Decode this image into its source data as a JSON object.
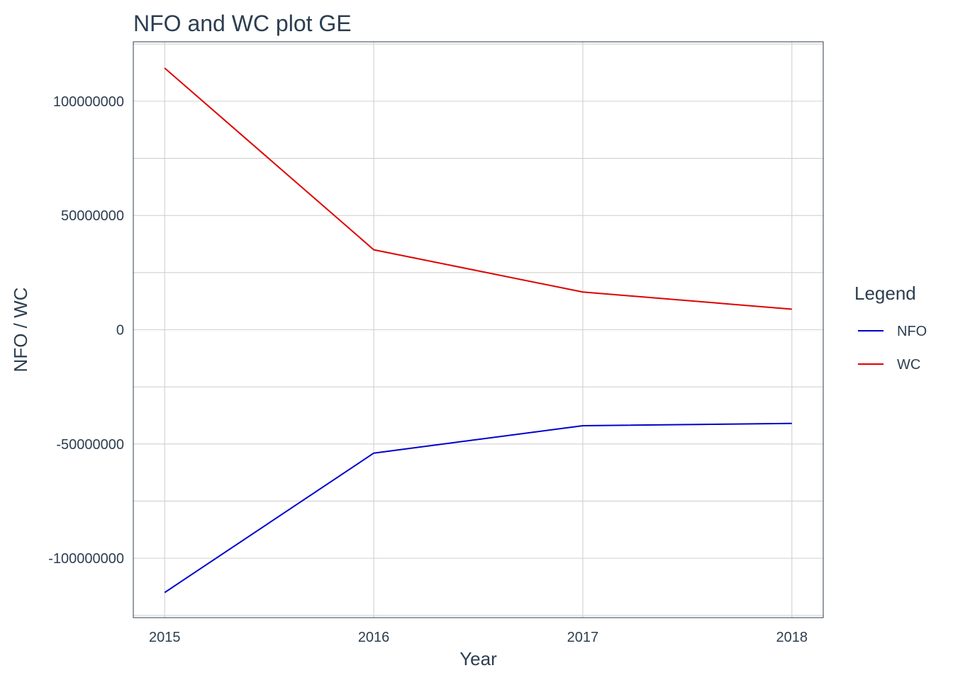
{
  "chart_data": {
    "type": "line",
    "title": "NFO and WC plot GE",
    "xlabel": "Year",
    "ylabel": "NFO / WC",
    "x": [
      2015,
      2016,
      2017,
      2018
    ],
    "x_tick_labels": [
      "2015",
      "2016",
      "2017",
      "2018"
    ],
    "y_ticks": [
      -100000000,
      -50000000,
      0,
      50000000,
      100000000
    ],
    "y_tick_labels": [
      "-100000000",
      "-50000000",
      "0",
      "50000000",
      "100000000"
    ],
    "xlim": [
      2014.85,
      2018.15
    ],
    "ylim": [
      -126000000,
      126000000
    ],
    "grid": true,
    "legend": {
      "title": "Legend",
      "placement": "right"
    },
    "series": [
      {
        "name": "NFO",
        "color": "#0000cc",
        "values": [
          -115000000,
          -54000000,
          -42000000,
          -41000000
        ]
      },
      {
        "name": "WC",
        "color": "#dd0000",
        "values": [
          114500000,
          35000000,
          16500000,
          9000000
        ]
      }
    ]
  }
}
